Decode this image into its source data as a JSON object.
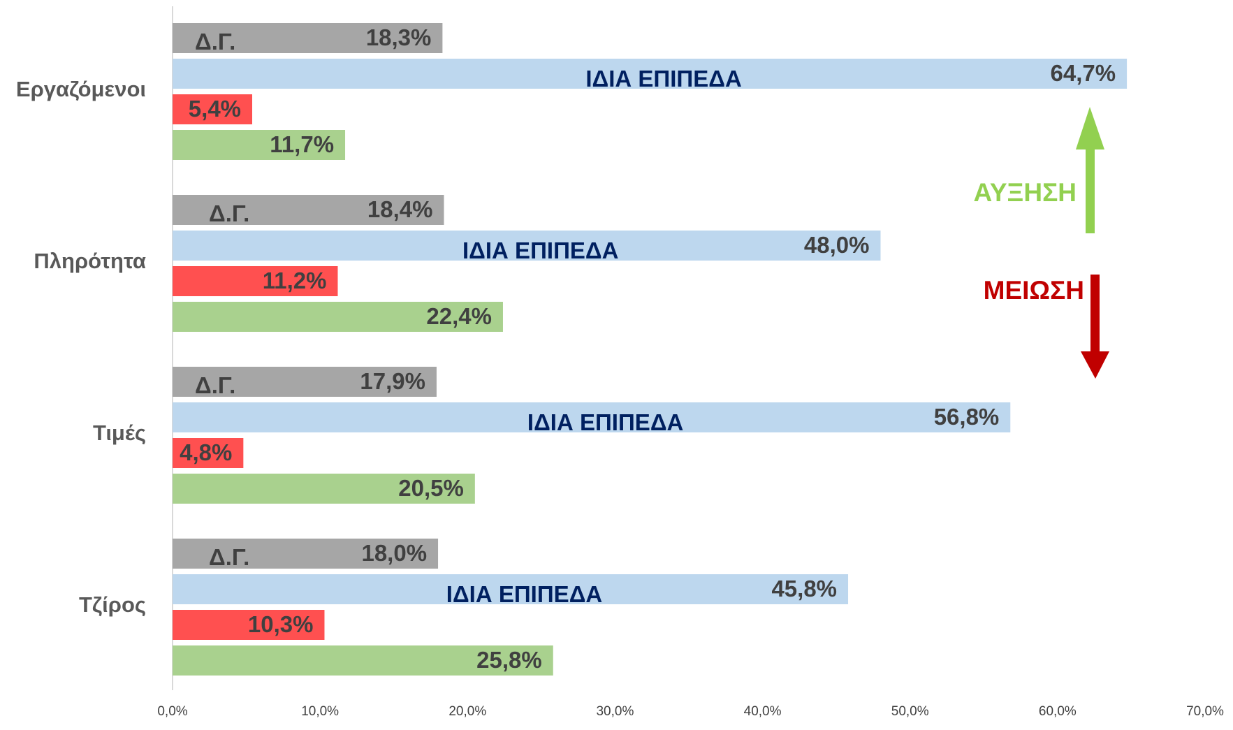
{
  "chart_data": {
    "type": "hbar",
    "categories": [
      "Εργαζόμενοι",
      "Πληρότητα",
      "Τιμές",
      "Τζίρος"
    ],
    "series": [
      {
        "name": "Δ.Γ.",
        "color": "#a6a6a6",
        "values": [
          18.3,
          18.4,
          17.9,
          18.0
        ],
        "value_labels": [
          "18,3%",
          "18,4%",
          "17,9%",
          "18,0%"
        ]
      },
      {
        "name": "ΙΔΙΑ ΕΠΙΠΕΔΑ",
        "color": "#bdd7ee",
        "values": [
          64.7,
          48.0,
          56.8,
          45.8
        ],
        "value_labels": [
          "64,7%",
          "48,0%",
          "56,8%",
          "45,8%"
        ]
      },
      {
        "name": "ΜΕΙΩΣΗ",
        "color": "#ff5050",
        "values": [
          5.4,
          11.2,
          4.8,
          10.3
        ],
        "value_labels": [
          "5,4%",
          "11,2%",
          "4,8%",
          "10,3%"
        ]
      },
      {
        "name": "ΑΥΞΗΣΗ",
        "color": "#a9d18e",
        "values": [
          11.7,
          22.4,
          20.5,
          25.8
        ],
        "value_labels": [
          "11,7%",
          "22,4%",
          "20,5%",
          "25,8%"
        ]
      }
    ],
    "xlim": [
      0,
      70
    ],
    "xticks": [
      {
        "value": 0,
        "label": "0,0%"
      },
      {
        "value": 10,
        "label": "10,0%"
      },
      {
        "value": 20,
        "label": "20,0%"
      },
      {
        "value": 30,
        "label": "30,0%"
      },
      {
        "value": 40,
        "label": "40,0%"
      },
      {
        "value": 50,
        "label": "50,0%"
      },
      {
        "value": 60,
        "label": "60,0%"
      },
      {
        "value": 70,
        "label": "70,0%"
      }
    ],
    "grid": false
  }
}
